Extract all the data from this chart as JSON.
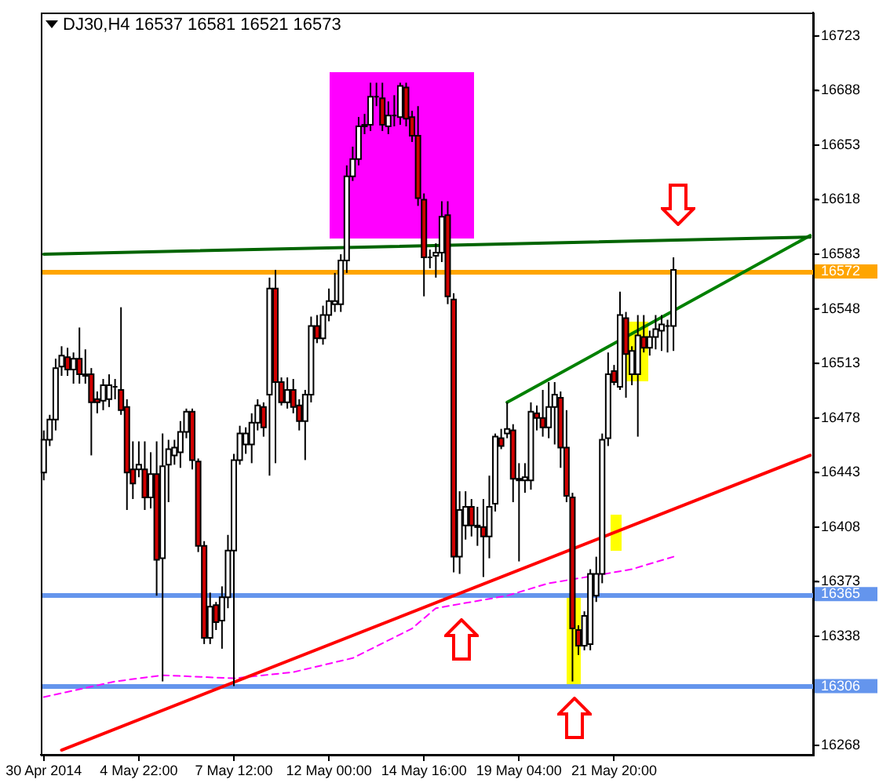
{
  "chart_data": {
    "type": "candlestick",
    "title": "DJ30,H4 16537 16581 16521 16573",
    "categories": [
      "30 Apr 2014",
      null,
      null,
      null,
      null,
      null,
      null,
      null,
      null,
      null,
      null,
      null,
      null,
      null,
      null,
      null,
      "4 May 22:00",
      null,
      null,
      null,
      null,
      null,
      null,
      null,
      null,
      null,
      null,
      null,
      null,
      null,
      null,
      null,
      "7 May 12:00",
      null,
      null,
      null,
      null,
      null,
      null,
      null,
      null,
      null,
      null,
      null,
      null,
      null,
      null,
      null,
      "12 May 00:00",
      null,
      null,
      null,
      null,
      null,
      null,
      null,
      null,
      null,
      null,
      null,
      null,
      null,
      null,
      null,
      "14 May 16:00",
      null,
      null,
      null,
      null,
      null,
      null,
      null,
      null,
      null,
      null,
      null,
      null,
      null,
      null,
      null,
      "19 May 04:00",
      null,
      null,
      null,
      null,
      null,
      null,
      null,
      null,
      null,
      null,
      null,
      null,
      null,
      null,
      null,
      "21 May 20:00",
      null,
      null,
      null,
      null,
      null,
      null,
      null,
      null,
      null,
      null,
      null,
      null,
      null,
      null,
      null,
      null,
      null,
      null,
      null,
      null,
      null,
      null,
      null,
      null,
      null,
      null,
      null,
      null,
      null,
      null,
      null,
      null,
      null
    ],
    "ohlc": [
      [
        16443,
        16470,
        16438,
        16464
      ],
      [
        16464,
        16480,
        16460,
        16477
      ],
      [
        16477,
        16516,
        16470,
        16510
      ],
      [
        16511,
        16524,
        16505,
        16518
      ],
      [
        16517,
        16523,
        16505,
        16509
      ],
      [
        16509,
        16520,
        16500,
        16516
      ],
      [
        16516,
        16536,
        16500,
        16506
      ],
      [
        16506,
        16522,
        16500,
        16505
      ],
      [
        16506,
        16510,
        16454,
        16488
      ],
      [
        16490,
        16495,
        16481,
        16488
      ],
      [
        16489,
        16503,
        16483,
        16499
      ],
      [
        16490,
        16506,
        16485,
        16499
      ],
      [
        16498,
        16503,
        16490,
        16498
      ],
      [
        16496,
        16549,
        16480,
        16483
      ],
      [
        16485,
        16490,
        16419,
        16443
      ],
      [
        16445,
        16463,
        16426,
        16436
      ],
      [
        16445,
        16463,
        16440,
        16448
      ],
      [
        16445,
        16463,
        16419,
        16427
      ],
      [
        16427,
        16456,
        16420,
        16442
      ],
      [
        16442,
        16463,
        16364,
        16387
      ],
      [
        16388,
        16468,
        16309,
        16447
      ],
      [
        16448,
        16464,
        16424,
        16458
      ],
      [
        16454,
        16464,
        16448,
        16459
      ],
      [
        16456,
        16476,
        16446,
        16469
      ],
      [
        16469,
        16484,
        16465,
        16482
      ],
      [
        16482,
        16484,
        16445,
        16451
      ],
      [
        16450,
        16452,
        16392,
        16396
      ],
      [
        16396,
        16399,
        16333,
        16337
      ],
      [
        16337,
        16366,
        16333,
        16357
      ],
      [
        16358,
        16360,
        16342,
        16347
      ],
      [
        16348,
        16370,
        16330,
        16363
      ],
      [
        16363,
        16403,
        16356,
        16393
      ],
      [
        16393,
        16455,
        16306,
        16451
      ],
      [
        16451,
        16473,
        16448,
        16468
      ],
      [
        16461,
        16472,
        16455,
        16468
      ],
      [
        16461,
        16481,
        16449,
        16475
      ],
      [
        16475,
        16490,
        16470,
        16486
      ],
      [
        16485,
        16488,
        16466,
        16472
      ],
      [
        16493,
        16568,
        16441,
        16561
      ],
      [
        16561,
        16573,
        16449,
        16501
      ],
      [
        16501,
        16504,
        16486,
        16488
      ],
      [
        16488,
        16504,
        16484,
        16496
      ],
      [
        16496,
        16503,
        16481,
        16485
      ],
      [
        16486,
        16490,
        16470,
        16476
      ],
      [
        16476,
        16496,
        16451,
        16493
      ],
      [
        16493,
        16543,
        16488,
        16537
      ],
      [
        16537,
        16544,
        16526,
        16529
      ],
      [
        16529,
        16550,
        16525,
        16544
      ],
      [
        16544,
        16561,
        16540,
        16553
      ],
      [
        16551,
        16571,
        16546,
        16553
      ],
      [
        16551,
        16583,
        16546,
        16579
      ],
      [
        16579,
        16640,
        16571,
        16633
      ],
      [
        16633,
        16652,
        16630,
        16644
      ],
      [
        16644,
        16671,
        16640,
        16665
      ],
      [
        16665,
        16673,
        16660,
        16666
      ],
      [
        16666,
        16693,
        16662,
        16684
      ],
      [
        16684,
        16693,
        16678,
        16684
      ],
      [
        16683,
        16693,
        16662,
        16666
      ],
      [
        16665,
        16681,
        16660,
        16672
      ],
      [
        16672,
        16685,
        16665,
        16672
      ],
      [
        16671,
        16693,
        16666,
        16691
      ],
      [
        16690,
        16693,
        16665,
        16670
      ],
      [
        16671,
        16675,
        16655,
        16659
      ],
      [
        16659,
        16678,
        16614,
        16619
      ],
      [
        16618,
        16622,
        16556,
        16581
      ],
      [
        16581,
        16586,
        16574,
        16581
      ],
      [
        16582,
        16590,
        16568,
        16584
      ],
      [
        16584,
        16617,
        16578,
        16607
      ],
      [
        16608,
        16617,
        16551,
        16556
      ],
      [
        16554,
        16558,
        16379,
        16389
      ],
      [
        16389,
        16431,
        16378,
        16419
      ],
      [
        16409,
        16431,
        16400,
        16421
      ],
      [
        16421,
        16426,
        16402,
        16409
      ],
      [
        16409,
        16421,
        16396,
        16408
      ],
      [
        16408,
        16426,
        16376,
        16402
      ],
      [
        16402,
        16441,
        16388,
        16421
      ],
      [
        16423,
        16468,
        16418,
        16466
      ],
      [
        16465,
        16471,
        16458,
        16460
      ],
      [
        16468,
        16488,
        16465,
        16471
      ],
      [
        16470,
        16474,
        16424,
        16439
      ],
      [
        16439,
        16449,
        16386,
        16438
      ],
      [
        16438,
        16449,
        16430,
        16440
      ],
      [
        16438,
        16488,
        16432,
        16482
      ],
      [
        16481,
        16486,
        16470,
        16478
      ],
      [
        16478,
        16496,
        16466,
        16472
      ],
      [
        16472,
        16501,
        16465,
        16485
      ],
      [
        16485,
        16501,
        16461,
        16493
      ],
      [
        16491,
        16495,
        16446,
        16459
      ],
      [
        16459,
        16483,
        16424,
        16428
      ],
      [
        16427,
        16430,
        16309,
        16343
      ],
      [
        16342,
        16345,
        16326,
        16332
      ],
      [
        16332,
        16354,
        16329,
        16351
      ],
      [
        16333,
        16381,
        16329,
        16378
      ],
      [
        16364,
        16389,
        16360,
        16378
      ],
      [
        16378,
        16468,
        16372,
        16464
      ],
      [
        16465,
        16520,
        16460,
        16506
      ],
      [
        16508,
        16512,
        16499,
        16501
      ],
      [
        16498,
        16559,
        16496,
        16544
      ],
      [
        16542,
        16546,
        16491,
        16519
      ],
      [
        16506,
        16524,
        16499,
        16521
      ],
      [
        16506,
        16544,
        16466,
        16531
      ],
      [
        16530,
        16544,
        16520,
        16523
      ],
      [
        16523,
        16534,
        16518,
        16530
      ],
      [
        16530,
        16544,
        16522,
        16535
      ],
      [
        16534,
        16544,
        16521,
        16538
      ],
      [
        16537,
        16541,
        16520,
        16537
      ],
      [
        16537,
        16581,
        16521,
        16573
      ],
      null,
      null,
      null,
      null,
      null,
      null,
      null,
      null,
      null,
      null,
      null,
      null,
      null,
      null,
      null,
      null,
      null,
      null,
      null,
      null,
      null,
      null,
      null
    ],
    "series": [
      {
        "type": "line",
        "color": "#006400",
        "values": [
          16583,
          null,
          null,
          null,
          null,
          null,
          null,
          null,
          null,
          null,
          null,
          null,
          null,
          null,
          null,
          null,
          null,
          null,
          null,
          null,
          null,
          null,
          null,
          null,
          null,
          null,
          null,
          null,
          null,
          null,
          null,
          null,
          null,
          null,
          null,
          null,
          null,
          null,
          null,
          null,
          null,
          null,
          null,
          null,
          null,
          null,
          null,
          null,
          null,
          null,
          null,
          null,
          null,
          null,
          null,
          null,
          null,
          null,
          null,
          null,
          null,
          null,
          null,
          null,
          null,
          null,
          null,
          null,
          null,
          null,
          null,
          null,
          null,
          null,
          null,
          null,
          null,
          null,
          null,
          null,
          null,
          null,
          null,
          null,
          null,
          null,
          null,
          null,
          null,
          null,
          null,
          null,
          null,
          null,
          null,
          null,
          null,
          null,
          null,
          null,
          null,
          null,
          null,
          null,
          null,
          null,
          null,
          null,
          null,
          null,
          null,
          null,
          null,
          null,
          null,
          null,
          null,
          null,
          null,
          null,
          null,
          null,
          null,
          null,
          null,
          null,
          null,
          null,
          null,
          16594
        ]
      },
      {
        "type": "line",
        "color": "#008000",
        "values": [
          null,
          null,
          null,
          null,
          null,
          null,
          null,
          null,
          null,
          null,
          null,
          null,
          null,
          null,
          null,
          null,
          null,
          null,
          null,
          null,
          null,
          null,
          null,
          null,
          null,
          null,
          null,
          null,
          null,
          null,
          null,
          null,
          null,
          null,
          null,
          null,
          null,
          null,
          null,
          null,
          null,
          null,
          null,
          null,
          null,
          null,
          null,
          null,
          null,
          null,
          null,
          null,
          null,
          null,
          null,
          null,
          null,
          null,
          null,
          null,
          null,
          null,
          null,
          null,
          null,
          null,
          null,
          null,
          null,
          null,
          null,
          null,
          null,
          null,
          null,
          null,
          null,
          null,
          16488,
          null,
          null,
          null,
          null,
          null,
          null,
          null,
          null,
          null,
          null,
          null,
          null,
          null,
          null,
          null,
          null,
          null,
          null,
          null,
          null,
          null,
          null,
          null,
          null,
          null,
          null,
          null,
          null,
          null,
          null,
          null,
          null,
          null,
          null,
          null,
          null,
          null,
          null,
          null,
          null,
          null,
          null,
          null,
          null,
          null,
          null,
          null,
          null,
          null,
          null,
          16595
        ]
      },
      {
        "type": "line",
        "color": "#ff0000",
        "values": [
          null,
          null,
          null,
          16265,
          null,
          null,
          null,
          null,
          null,
          null,
          null,
          null,
          null,
          null,
          null,
          null,
          null,
          null,
          null,
          null,
          null,
          null,
          null,
          null,
          null,
          null,
          null,
          null,
          null,
          null,
          null,
          null,
          null,
          null,
          null,
          null,
          null,
          null,
          null,
          null,
          null,
          null,
          null,
          null,
          null,
          null,
          null,
          null,
          null,
          null,
          null,
          null,
          null,
          null,
          null,
          null,
          null,
          null,
          null,
          null,
          null,
          null,
          null,
          null,
          null,
          null,
          null,
          null,
          null,
          null,
          null,
          null,
          null,
          null,
          null,
          null,
          null,
          null,
          null,
          null,
          null,
          null,
          null,
          null,
          null,
          null,
          null,
          null,
          null,
          null,
          null,
          null,
          null,
          null,
          null,
          null,
          null,
          null,
          null,
          null,
          null,
          null,
          null,
          null,
          null,
          null,
          null,
          null,
          null,
          null,
          null,
          null,
          null,
          null,
          null,
          null,
          null,
          null,
          null,
          null,
          null,
          null,
          null,
          null,
          null,
          null,
          null,
          null,
          null,
          16454
        ]
      },
      {
        "type": "line",
        "color": "#ff00ff",
        "line_style": "dashed",
        "values": [
          16299,
          null,
          null,
          null,
          null,
          null,
          null,
          null,
          null,
          null,
          null,
          null,
          16309,
          null,
          null,
          null,
          null,
          null,
          null,
          null,
          16313,
          null,
          null,
          null,
          null,
          null,
          null,
          null,
          null,
          null,
          null,
          null,
          16311,
          null,
          null,
          null,
          null,
          null,
          null,
          null,
          null,
          null,
          16315,
          null,
          null,
          null,
          null,
          null,
          null,
          null,
          null,
          null,
          16324,
          null,
          null,
          null,
          null,
          null,
          null,
          null,
          null,
          null,
          16343,
          null,
          null,
          null,
          16356,
          null,
          null,
          null,
          null,
          null,
          null,
          null,
          null,
          null,
          null,
          null,
          16364,
          null,
          null,
          null,
          null,
          null,
          null,
          16372,
          null,
          null,
          null,
          null,
          null,
          null,
          null,
          16377,
          null,
          null,
          null,
          null,
          null,
          16381,
          null,
          null,
          null,
          null,
          null,
          null,
          16389,
          null,
          null,
          null,
          null,
          null,
          null,
          null,
          null,
          null,
          null,
          null,
          null,
          null,
          null,
          null,
          null,
          null,
          null,
          null,
          null,
          null,
          null,
          null
        ]
      }
    ],
    "ylim": [
      16262,
      16738
    ],
    "yticks": [
      16723,
      16688,
      16653,
      16618,
      16583,
      16548,
      16513,
      16478,
      16443,
      16408,
      16373,
      16338,
      16268
    ],
    "ref_lines": [
      {
        "axis": "y",
        "value": 16572,
        "label": "16572",
        "color": "#ffa500"
      },
      {
        "axis": "y",
        "value": 16365,
        "label": "16365",
        "color": "#6495ed"
      },
      {
        "axis": "y",
        "value": 16306,
        "label": "16306",
        "color": "#6495ed"
      }
    ],
    "legend": false,
    "grid": false
  }
}
